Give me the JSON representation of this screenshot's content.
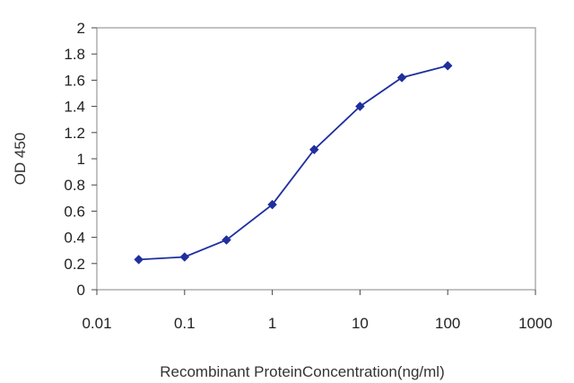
{
  "chart_data": {
    "type": "line",
    "title": "",
    "xlabel": "Recombinant ProteinConcentration(ng/ml)",
    "ylabel": "OD 450",
    "x_scale": "log",
    "xlim": [
      0.01,
      1000
    ],
    "ylim": [
      0,
      2
    ],
    "x_ticks": [
      0.01,
      0.1,
      1,
      10,
      100,
      1000
    ],
    "x_tick_labels": [
      "0.01",
      "0.1",
      "1",
      "10",
      "100",
      "1000"
    ],
    "y_ticks": [
      0,
      0.2,
      0.4,
      0.6,
      0.8,
      1,
      1.2,
      1.4,
      1.6,
      1.8,
      2
    ],
    "y_tick_labels": [
      "0",
      "0.2",
      "0.4",
      "0.6",
      "0.8",
      "1",
      "1.2",
      "1.4",
      "1.6",
      "1.8",
      "2"
    ],
    "grid": false,
    "legend": "none",
    "series": [
      {
        "x": [
          0.03,
          0.1,
          0.3,
          1,
          3,
          10,
          30,
          100
        ],
        "y": [
          0.23,
          0.25,
          0.38,
          0.65,
          1.07,
          1.4,
          1.62,
          1.71
        ],
        "color": "#1f2f9e",
        "marker": "diamond"
      }
    ],
    "colors": {
      "plot_border": "#9a9a9a",
      "series": "#1f2f9e"
    }
  }
}
